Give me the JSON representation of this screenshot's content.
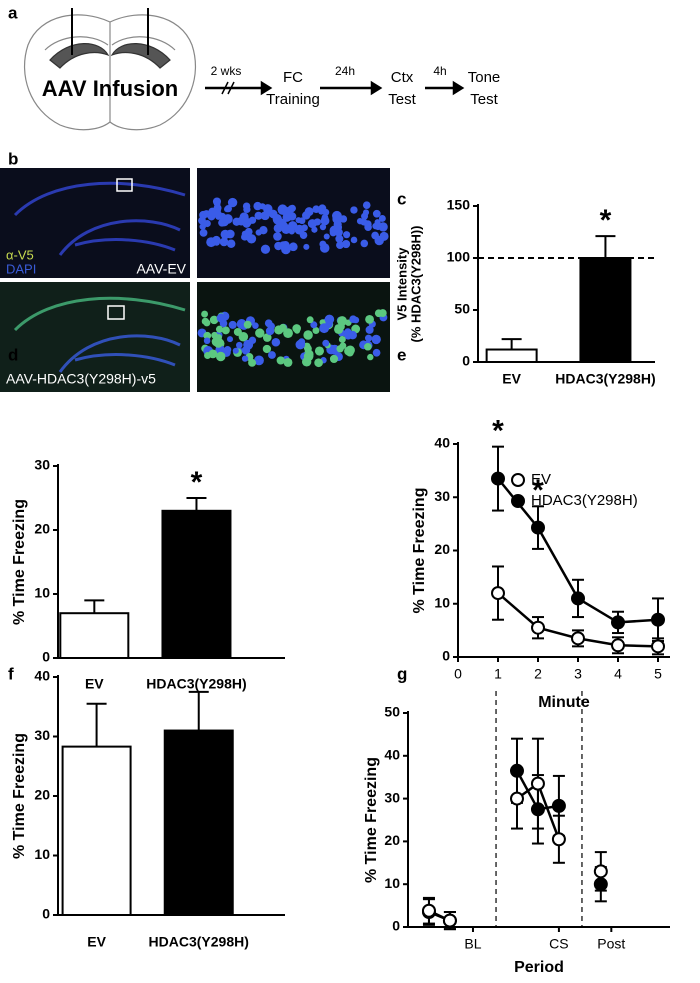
{
  "panel_a": {
    "label": "a",
    "infusion": "AAV Infusion",
    "steps": [
      {
        "interval": "2 wks",
        "lines": [
          "FC",
          "Training"
        ]
      },
      {
        "interval": "24h",
        "lines": [
          "Ctx",
          "Test"
        ]
      },
      {
        "interval": "4h",
        "lines": [
          "Tone",
          "Test"
        ]
      }
    ]
  },
  "panel_b": {
    "label": "b",
    "legend": [
      {
        "text": "α-V5",
        "color": "#c8dc50"
      },
      {
        "text": "DAPI",
        "color": "#3a5cd8"
      }
    ],
    "captions": [
      "AAV-EV",
      "AAV-HDAC3(Y298H)-v5"
    ]
  },
  "chart_data": [
    {
      "label": "c",
      "type": "bar",
      "ylabel": [
        "V5 Intensity",
        "(% HDAC3(Y298H))"
      ],
      "categories": [
        "EV",
        "HDAC3(Y298H)"
      ],
      "values": [
        12,
        100
      ],
      "errors": [
        10,
        21
      ],
      "colors": [
        "#ffffff",
        "#000000"
      ],
      "ylim": [
        0,
        150
      ],
      "yticks": [
        0,
        50,
        100,
        150
      ],
      "reference_line": 100,
      "annotations": [
        {
          "text": "*",
          "index": 1
        }
      ]
    },
    {
      "label": "d",
      "type": "bar",
      "ylabel": [
        "% Time Freezing"
      ],
      "categories": [
        "EV",
        "HDAC3(Y298H)"
      ],
      "values": [
        7,
        23
      ],
      "errors": [
        2,
        2
      ],
      "colors": [
        "#ffffff",
        "#000000"
      ],
      "ylim": [
        0,
        30
      ],
      "yticks": [
        0,
        10,
        20,
        30
      ],
      "annotations": [
        {
          "text": "*",
          "index": 1
        }
      ]
    },
    {
      "label": "e",
      "type": "line",
      "ylabel": [
        "% Time Freezing"
      ],
      "xlabel": "Minute",
      "x": [
        1,
        2,
        3,
        4,
        5
      ],
      "xlim": [
        0,
        5.3
      ],
      "xticks": [
        0,
        1,
        2,
        3,
        4,
        5
      ],
      "ylim": [
        0,
        40
      ],
      "yticks": [
        0,
        10,
        20,
        30,
        40
      ],
      "legend": "top-right",
      "series": [
        {
          "name": "EV",
          "color": "#000000",
          "marker_fill": "#ffffff",
          "values": [
            12,
            5.5,
            3.5,
            2.2,
            2
          ],
          "errors": [
            5,
            2,
            1.5,
            1.5,
            1.5
          ]
        },
        {
          "name": "HDAC3(Y298H)",
          "color": "#000000",
          "marker_fill": "#000000",
          "values": [
            33.5,
            24.3,
            11,
            6.5,
            7
          ],
          "errors": [
            6,
            4,
            3.5,
            2,
            4
          ]
        }
      ],
      "annotations": [
        {
          "text": "*",
          "series": 1,
          "index": 0
        },
        {
          "text": "*",
          "series": 1,
          "index": 1
        }
      ]
    },
    {
      "label": "f",
      "type": "bar",
      "ylabel": [
        "% Time Freezing"
      ],
      "categories": [
        "EV",
        "HDAC3(Y298H)"
      ],
      "values": [
        28.3,
        31
      ],
      "errors": [
        7.2,
        6.5
      ],
      "colors": [
        "#ffffff",
        "#000000"
      ],
      "ylim": [
        0,
        40
      ],
      "yticks": [
        0,
        10,
        20,
        30,
        40
      ]
    },
    {
      "label": "g",
      "type": "line",
      "ylabel": [
        "% Time Freezing"
      ],
      "xlabel": "Period",
      "x": [
        1,
        2,
        3.5,
        5.2,
        6.2,
        7.2,
        8.2,
        9.2
      ],
      "xlim": [
        0,
        12.5
      ],
      "xticks": [
        {
          "value": 3.1,
          "label": "BL"
        },
        {
          "value": 7.2,
          "label": "CS"
        },
        {
          "value": 9.7,
          "label": "Post"
        }
      ],
      "ylim": [
        0,
        50
      ],
      "yticks": [
        0,
        10,
        20,
        30,
        40,
        50
      ],
      "dividers": [
        4.2,
        8.3
      ],
      "series": [
        {
          "name": "EV",
          "color": "#000000",
          "marker_fill": "#ffffff",
          "values": [
            3.8,
            1.5,
            null,
            30,
            33.5,
            20.5,
            null,
            13
          ],
          "errors": [
            3,
            2,
            null,
            7,
            10.5,
            5.5,
            null,
            4.5
          ]
        },
        {
          "name": "HDAC3(Y298H)",
          "color": "#000000",
          "marker_fill": "#000000",
          "values": [
            3.5,
            1.5,
            null,
            36.5,
            27.5,
            28.3,
            null,
            10
          ],
          "errors": [
            3,
            2,
            null,
            7.5,
            8,
            7,
            null,
            4
          ]
        }
      ]
    }
  ]
}
